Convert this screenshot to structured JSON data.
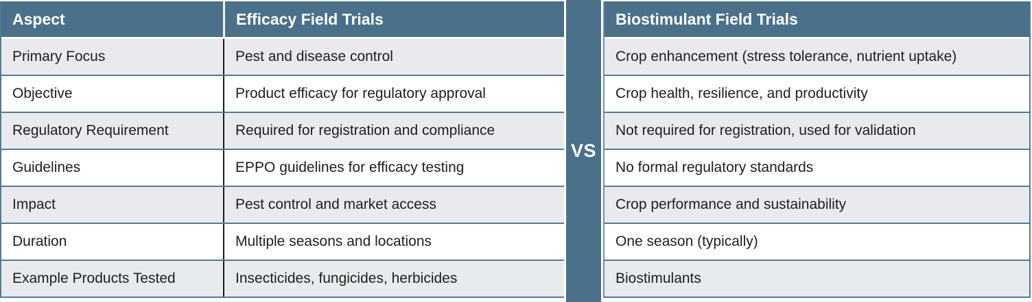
{
  "colors": {
    "header_teal": "#4a7189",
    "grid_teal": "#4e7b95",
    "row_gray": "#e9eaee",
    "row_white": "#ffffff",
    "column_divider_dark": "#1b1b1b",
    "header_text": "#ffffff",
    "body_text": "#1e1e1e"
  },
  "vs_divider": {
    "label": "VS"
  },
  "table": {
    "headers": {
      "aspect": "Aspect",
      "efficacy": "Efficacy Field Trials",
      "biostimulant": "Biostimulant Field Trials"
    },
    "rows": [
      {
        "aspect": "Primary Focus",
        "efficacy": "Pest and disease control",
        "biostimulant": "Crop enhancement (stress tolerance, nutrient uptake)"
      },
      {
        "aspect": "Objective",
        "efficacy": "Product efficacy for regulatory approval",
        "biostimulant": "Crop health, resilience, and productivity"
      },
      {
        "aspect": "Regulatory Requirement",
        "efficacy": "Required for registration and compliance",
        "biostimulant": "Not required for registration, used for validation"
      },
      {
        "aspect": "Guidelines",
        "efficacy": "EPPO guidelines for efficacy testing",
        "biostimulant": "No formal regulatory standards"
      },
      {
        "aspect": "Impact",
        "efficacy": "Pest control and market access",
        "biostimulant": "Crop performance and sustainability"
      },
      {
        "aspect": "Duration",
        "efficacy": "Multiple seasons and locations",
        "biostimulant": "One season (typically)"
      },
      {
        "aspect": "Example Products Tested",
        "efficacy": "Insecticides, fungicides, herbicides",
        "biostimulant": "Biostimulants"
      }
    ]
  }
}
